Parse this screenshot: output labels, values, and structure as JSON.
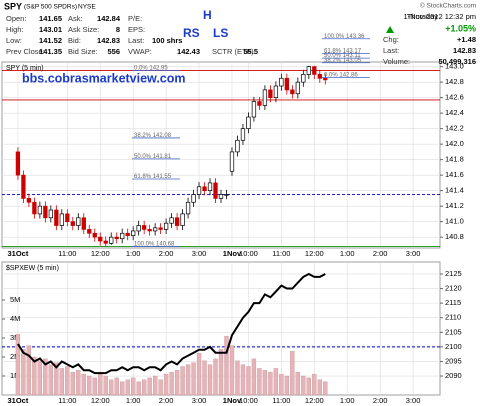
{
  "header": {
    "symbol": "SPY",
    "name": "(S&P 500 SPDRs)",
    "exchange": "NYSE",
    "credit": "© StockCharts.com",
    "quote": [
      {
        "label": "Open:",
        "value": 141.65
      },
      {
        "label": "High:",
        "value": 143.01
      },
      {
        "label": "Low:",
        "value": 141.52
      },
      {
        "label": "Prev Close:",
        "value": 141.35
      },
      {
        "label": "Ask:",
        "value": 142.84
      },
      {
        "label": "Ask Size:",
        "value": 8
      },
      {
        "label": "Bid:",
        "value": 142.83
      },
      {
        "label": "Bid Size:",
        "value": 556
      },
      {
        "label": "P/E:"
      },
      {
        "label": "EPS:"
      },
      {
        "label": "Last:",
        "value": "100 shrs"
      },
      {
        "label": "VWAP:",
        "value": 142.43
      },
      {
        "label": "SCTR (ETF):",
        "value": 55.5
      }
    ],
    "date": "Thursday",
    "time": "1-Nov-2012 12:32 pm",
    "change_pct": "+1.05%",
    "summary": [
      {
        "label": "Chg:",
        "value": "+1.48"
      },
      {
        "label": "Last:",
        "value": 142.83
      },
      {
        "label": "Volume:",
        "value": "50,499,316"
      }
    ]
  },
  "annotations": {
    "h": "H",
    "rs": "RS",
    "ls": "LS",
    "site": "bbs.cobrasmarketview.com"
  },
  "chart_data": [
    {
      "type": "candlestick",
      "title": "SPY (5 min)",
      "open": [
        141.9,
        141.6,
        141.3,
        141.25,
        141.1,
        141.2,
        141.05,
        141.15,
        140.95,
        141.1,
        141.0,
        140.95,
        141.05,
        140.9,
        140.85,
        140.8,
        140.75,
        140.72,
        140.8,
        140.78,
        140.85,
        140.82,
        140.88,
        140.95,
        140.9,
        140.88,
        140.92,
        140.9,
        140.98,
        141.05,
        140.95,
        141.1,
        141.25,
        141.35,
        141.45,
        141.4,
        141.5,
        141.3,
        141.35,
        141.65,
        141.9,
        142.05,
        142.2,
        142.35,
        142.55,
        142.5,
        142.7,
        142.6,
        142.75,
        142.85,
        142.7,
        142.65,
        142.8,
        142.9,
        143.0,
        142.9,
        142.85
      ],
      "high": [
        141.96,
        141.66,
        141.36,
        141.31,
        141.26,
        141.26,
        141.21,
        141.21,
        141.16,
        141.16,
        141.06,
        141.11,
        141.11,
        140.96,
        140.91,
        140.86,
        140.81,
        140.86,
        140.86,
        140.91,
        140.91,
        140.94,
        141.01,
        141.01,
        140.96,
        140.98,
        140.98,
        141.04,
        141.11,
        141.11,
        141.16,
        141.31,
        141.41,
        141.51,
        141.51,
        141.56,
        141.56,
        141.41,
        141.41,
        141.96,
        142.11,
        142.26,
        142.41,
        142.61,
        142.61,
        142.76,
        142.76,
        142.81,
        142.91,
        142.91,
        142.76,
        142.86,
        142.96,
        143.01,
        143.01,
        142.96,
        142.91
      ],
      "low": [
        141.54,
        141.24,
        141.19,
        141.04,
        141.04,
        140.99,
        140.99,
        140.89,
        140.89,
        140.94,
        140.89,
        140.89,
        140.84,
        140.79,
        140.74,
        140.69,
        140.68,
        140.7,
        140.72,
        140.72,
        140.76,
        140.76,
        140.82,
        140.84,
        140.82,
        140.82,
        140.84,
        140.84,
        140.92,
        140.89,
        140.89,
        141.04,
        141.19,
        141.29,
        141.34,
        141.34,
        141.24,
        141.24,
        141.29,
        141.59,
        141.84,
        141.99,
        142.14,
        142.29,
        142.44,
        142.44,
        142.54,
        142.54,
        142.69,
        142.64,
        142.59,
        142.59,
        142.74,
        142.84,
        142.84,
        142.79,
        142.77
      ],
      "close": [
        141.6,
        141.3,
        141.25,
        141.1,
        141.2,
        141.05,
        141.15,
        140.95,
        141.1,
        141.0,
        140.95,
        141.05,
        140.9,
        140.85,
        140.8,
        140.75,
        140.72,
        140.8,
        140.78,
        140.85,
        140.82,
        140.88,
        140.95,
        140.9,
        140.88,
        140.92,
        140.9,
        140.98,
        141.05,
        140.95,
        141.1,
        141.25,
        141.35,
        141.45,
        141.4,
        141.5,
        141.3,
        141.35,
        141.35,
        141.9,
        142.05,
        142.2,
        142.35,
        142.55,
        142.5,
        142.7,
        142.6,
        142.75,
        142.85,
        142.7,
        142.65,
        142.8,
        142.9,
        143.0,
        142.9,
        142.85,
        142.83
      ],
      "up_color": "#000000",
      "down_color": "#cc0000",
      "xlim": [
        -2.9,
        76.9
      ],
      "xticks": [
        {
          "value": 0,
          "label": "31Oct"
        },
        {
          "value": 9,
          "label": "11:00"
        },
        {
          "value": 15,
          "label": "12:00"
        },
        {
          "value": 21,
          "label": "1:00"
        },
        {
          "value": 27,
          "label": "2:00"
        },
        {
          "value": 33,
          "label": "3:00"
        },
        {
          "value": 39,
          "label": "1Nov"
        },
        {
          "value": 42,
          "label": "10:00"
        },
        {
          "value": 48,
          "label": "11:00"
        },
        {
          "value": 54,
          "label": "12:00"
        },
        {
          "value": 60,
          "label": "1:00"
        },
        {
          "value": 66,
          "label": "2:00"
        },
        {
          "value": 72,
          "label": "3:00"
        }
      ],
      "ylim": [
        140.66,
        143.06
      ],
      "yticks": [
        140.8,
        {
          "value": 141,
          "label": "141.0"
        },
        141.2,
        141.4,
        141.6,
        141.8,
        {
          "value": 142,
          "label": "142.0"
        },
        142.2,
        142.4,
        142.6,
        142.8,
        {
          "value": 143,
          "label": "143.0"
        }
      ],
      "grid": true,
      "fib_lower": [
        {
          "level": "0.0%",
          "value": 142.95
        },
        {
          "level": "38.2%",
          "value": 142.08
        },
        {
          "level": "50.0%",
          "value": 141.81
        },
        {
          "level": "61.8%",
          "value": 141.55
        },
        {
          "level": "100.0%",
          "value": 140.68
        }
      ],
      "fib_upper": [
        {
          "level": "100.0%",
          "value": 143.36
        },
        {
          "level": "61.8%",
          "value": 143.17
        },
        {
          "level": "50.0%",
          "value": 143.11
        },
        {
          "level": "38.2%",
          "value": 143.05
        },
        {
          "level": "0.0%",
          "value": 142.86
        }
      ],
      "hlines": [
        {
          "value": 142.95,
          "color": "#cc0000"
        },
        {
          "value": 142.57,
          "color": "#cc0000"
        },
        {
          "value": 141.35,
          "color": "#0000cc",
          "dashed": true
        },
        {
          "value": 140.68,
          "color": "#009900"
        }
      ]
    },
    {
      "type": "line_volume",
      "title": "$SPXEW (5 min)",
      "values": [
        2101,
        2098,
        2097,
        2095,
        2096,
        2094,
        2095,
        2093,
        2095,
        2094,
        2093,
        2094,
        2092,
        2092,
        2091,
        2091,
        2091,
        2092,
        2092,
        2093,
        2092,
        2093,
        2093,
        2092,
        2093,
        2093,
        2092,
        2094,
        2095,
        2094,
        2096,
        2097,
        2098,
        2099,
        2099,
        2100,
        2098,
        2098,
        2098,
        2104,
        2107,
        2110,
        2112,
        2115,
        2115,
        2118,
        2117,
        2119,
        2121,
        2120,
        2120,
        2122,
        2124,
        2125,
        2124,
        2124,
        2125
      ],
      "color": "#000000",
      "volume": [
        3200000,
        2400000,
        2600000,
        2000000,
        1800000,
        1900000,
        1600000,
        1700000,
        1400000,
        1500000,
        1200000,
        1300000,
        1100000,
        1000000,
        900000,
        1200000,
        1000000,
        800000,
        900000,
        700000,
        800000,
        900000,
        700000,
        800000,
        900000,
        1000000,
        800000,
        1100000,
        1200000,
        1300000,
        1500000,
        1600000,
        1700000,
        2200000,
        1800000,
        1600000,
        1900000,
        2400000,
        3100000,
        2600000,
        1800000,
        1600000,
        1500000,
        1900000,
        1400000,
        1300000,
        1200000,
        1400000,
        1100000,
        1000000,
        2300000,
        1200000,
        1000000,
        900000,
        1100000,
        800000,
        700000
      ],
      "volume_color": "#e6b3b8",
      "xlim": [
        -2.9,
        76.9
      ],
      "xticks": [
        {
          "value": 0,
          "label": "31Oct"
        },
        {
          "value": 9,
          "label": "11:00"
        },
        {
          "value": 15,
          "label": "12:00"
        },
        {
          "value": 21,
          "label": "1:00"
        },
        {
          "value": 27,
          "label": "2:00"
        },
        {
          "value": 33,
          "label": "3:00"
        },
        {
          "value": 39,
          "label": "1Nov"
        },
        {
          "value": 42,
          "label": "10:00"
        },
        {
          "value": 48,
          "label": "11:00"
        },
        {
          "value": 54,
          "label": "12:00"
        },
        {
          "value": 60,
          "label": "1:00"
        },
        {
          "value": 66,
          "label": "2:00"
        },
        {
          "value": 72,
          "label": "3:00"
        }
      ],
      "ylim": [
        2083.5,
        2129.1
      ],
      "yticks": [
        2090,
        2095,
        2100,
        2105,
        2110,
        2115,
        2120,
        2125
      ],
      "y2lim": [
        0,
        7000000
      ],
      "y2ticks": [
        {
          "value": 1000000,
          "label": "1M"
        },
        {
          "value": 2000000,
          "label": "2M"
        },
        {
          "value": 3000000,
          "label": "3M"
        },
        {
          "value": 4000000,
          "label": "4M"
        },
        {
          "value": 5000000,
          "label": "5M"
        }
      ],
      "grid": true,
      "hlines": [
        {
          "value": 2100,
          "color": "#0000cc",
          "dashed": true
        }
      ]
    }
  ]
}
